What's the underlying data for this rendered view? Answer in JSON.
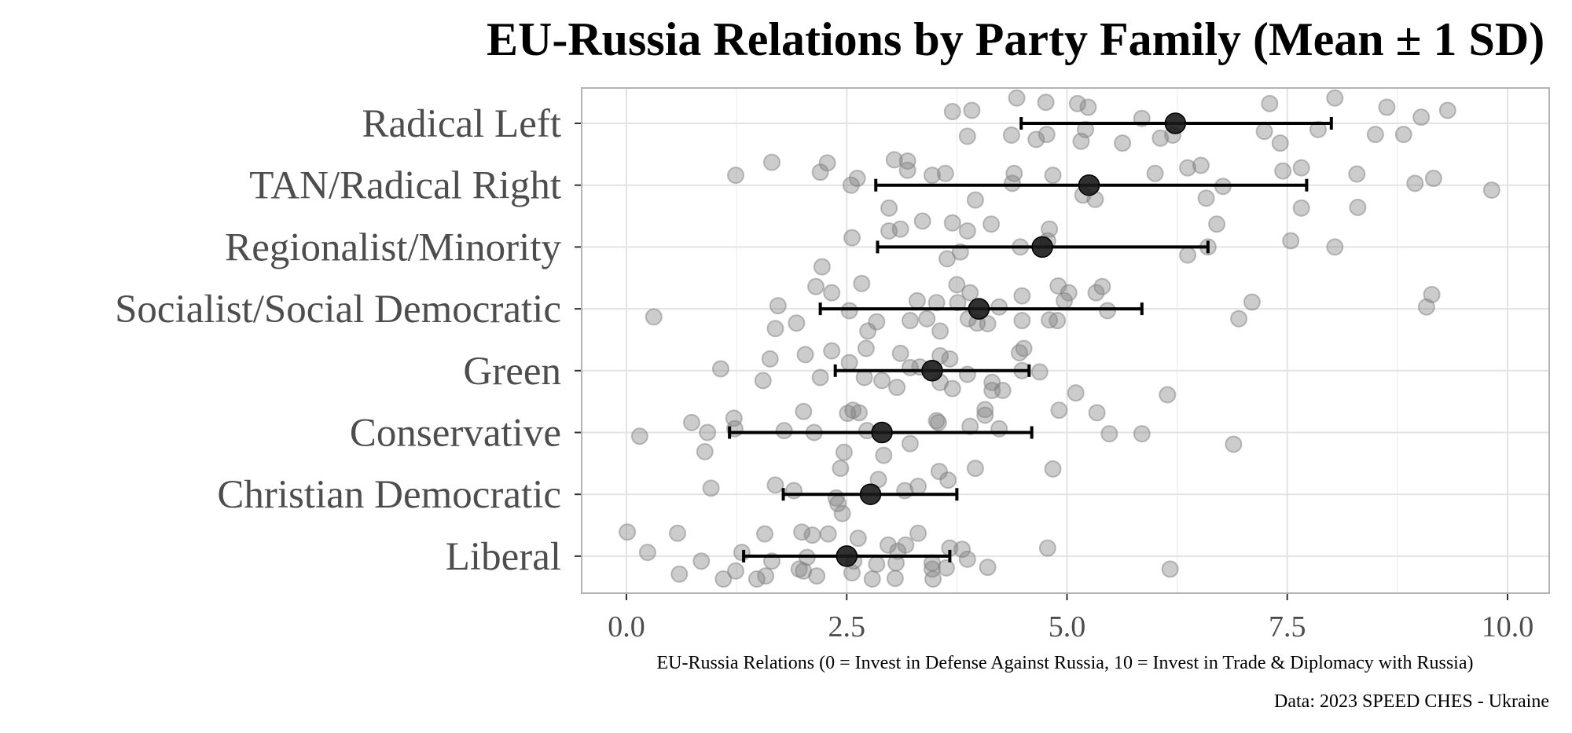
{
  "chart_data": {
    "type": "scatter",
    "title": "EU-Russia Relations by Party Family (Mean ± 1 SD)",
    "xlabel": "EU-Russia Relations (0 = Invest in Defense Against Russia, 10 = Invest in Trade & Diplomacy with Russia)",
    "ylabel": "",
    "caption": "Data: 2023 SPEED CHES - Ukraine",
    "xlim": [
      -0.5,
      10.5
    ],
    "xticks": [
      0,
      2.5,
      5,
      7.5,
      10
    ],
    "xtick_labels": [
      "0.0",
      "2.5",
      "5.0",
      "7.5",
      "10.0"
    ],
    "grid": true,
    "categories": [
      "Radical Left",
      "TAN/Radical Right",
      "Regionalist/Minority",
      "Socialist/Social Democratic",
      "Green",
      "Conservative",
      "Christian Democratic",
      "Liberal"
    ],
    "summary": [
      {
        "category": "Radical Left",
        "mean": 6.23,
        "lo": 4.48,
        "hi": 8.0
      },
      {
        "category": "TAN/Radical Right",
        "mean": 5.25,
        "lo": 2.83,
        "hi": 7.72
      },
      {
        "category": "Regionalist/Minority",
        "mean": 4.72,
        "lo": 2.85,
        "hi": 6.6
      },
      {
        "category": "Socialist/Social Democratic",
        "mean": 4.0,
        "lo": 2.2,
        "hi": 5.85
      },
      {
        "category": "Green",
        "mean": 3.47,
        "lo": 2.37,
        "hi": 4.57
      },
      {
        "category": "Conservative",
        "mean": 2.9,
        "lo": 1.17,
        "hi": 4.6
      },
      {
        "category": "Christian Democratic",
        "mean": 2.77,
        "lo": 1.78,
        "hi": 3.75
      },
      {
        "category": "Liberal",
        "mean": 2.5,
        "lo": 1.33,
        "hi": 3.67
      }
    ],
    "points": {
      "Radical Left": [
        [
          4.43,
          -0.41
        ],
        [
          4.76,
          -0.34
        ],
        [
          5.12,
          -0.32
        ],
        [
          5.24,
          -0.26
        ],
        [
          3.7,
          -0.19
        ],
        [
          3.92,
          -0.21
        ],
        [
          7.3,
          -0.32
        ],
        [
          8.04,
          -0.41
        ],
        [
          8.63,
          -0.26
        ],
        [
          9.02,
          -0.1
        ],
        [
          9.32,
          -0.21
        ],
        [
          3.87,
          0.21
        ],
        [
          4.37,
          0.19
        ],
        [
          4.65,
          0.26
        ],
        [
          4.77,
          0.18
        ],
        [
          5.21,
          0.1
        ],
        [
          5.16,
          0.29
        ],
        [
          5.63,
          0.32
        ],
        [
          5.85,
          -0.08
        ],
        [
          6.06,
          0.24
        ],
        [
          6.2,
          0.19
        ],
        [
          7.24,
          0.13
        ],
        [
          7.42,
          0.32
        ],
        [
          7.85,
          0.1
        ],
        [
          8.5,
          0.18
        ],
        [
          8.82,
          0.18
        ]
      ],
      "TAN/Radical Right": [
        [
          1.24,
          -0.16
        ],
        [
          1.65,
          -0.37
        ],
        [
          2.28,
          -0.36
        ],
        [
          2.2,
          -0.21
        ],
        [
          2.55,
          0
        ],
        [
          2.62,
          -0.11
        ],
        [
          3.04,
          -0.41
        ],
        [
          3.19,
          -0.39
        ],
        [
          3.19,
          -0.24
        ],
        [
          3.47,
          -0.16
        ],
        [
          3.62,
          -0.19
        ],
        [
          4.4,
          -0.19
        ],
        [
          4.38,
          -0.03
        ],
        [
          4.84,
          -0.16
        ],
        [
          6.37,
          -0.28
        ],
        [
          6.52,
          -0.32
        ],
        [
          6.0,
          -0.19
        ],
        [
          6.77,
          0.02
        ],
        [
          6.58,
          0.21
        ],
        [
          7.45,
          -0.23
        ],
        [
          7.66,
          -0.28
        ],
        [
          8.29,
          -0.18
        ],
        [
          8.95,
          -0.03
        ],
        [
          9.16,
          -0.11
        ],
        [
          9.82,
          0.08
        ],
        [
          5.18,
          0.16
        ],
        [
          5.32,
          0.23
        ],
        [
          3.96,
          0.24
        ],
        [
          2.98,
          0.37
        ],
        [
          7.66,
          0.37
        ],
        [
          8.3,
          0.36
        ]
      ],
      "Regionalist/Minority": [
        [
          3.36,
          -0.42
        ],
        [
          3.11,
          -0.29
        ],
        [
          2.98,
          -0.26
        ],
        [
          3.7,
          -0.39
        ],
        [
          4.14,
          -0.37
        ],
        [
          4.8,
          -0.29
        ],
        [
          6.7,
          -0.37
        ],
        [
          2.56,
          -0.15
        ],
        [
          3.87,
          -0.26
        ],
        [
          4.78,
          -0.1
        ],
        [
          7.54,
          -0.1
        ],
        [
          8.04,
          0
        ],
        [
          6.6,
          0
        ],
        [
          6.37,
          0.13
        ],
        [
          3.64,
          0.19
        ],
        [
          3.79,
          0.08
        ],
        [
          4.47,
          0
        ],
        [
          2.22,
          0.32
        ]
      ],
      "Socialist/Social Democratic": [
        [
          2.15,
          -0.36
        ],
        [
          2.33,
          -0.26
        ],
        [
          2.67,
          -0.41
        ],
        [
          3.75,
          -0.39
        ],
        [
          3.9,
          -0.26
        ],
        [
          4.49,
          -0.21
        ],
        [
          4.9,
          -0.37
        ],
        [
          5.02,
          -0.26
        ],
        [
          5.33,
          -0.26
        ],
        [
          5.4,
          -0.36
        ],
        [
          3.3,
          -0.13
        ],
        [
          3.52,
          -0.1
        ],
        [
          3.76,
          -0.1
        ],
        [
          4.23,
          -0.03
        ],
        [
          4.97,
          -0.13
        ],
        [
          5.46,
          0.03
        ],
        [
          7.1,
          -0.11
        ],
        [
          9.14,
          -0.23
        ],
        [
          9.08,
          -0.03
        ],
        [
          1.72,
          -0.05
        ],
        [
          0.31,
          0.13
        ],
        [
          2.53,
          0.03
        ],
        [
          2.84,
          0.21
        ],
        [
          3.22,
          0.19
        ],
        [
          3.41,
          0.16
        ],
        [
          3.88,
          0.16
        ],
        [
          4.1,
          0.24
        ],
        [
          4.49,
          0.19
        ],
        [
          4.8,
          0.18
        ],
        [
          4.89,
          0.19
        ],
        [
          6.95,
          0.16
        ],
        [
          1.69,
          0.32
        ],
        [
          1.93,
          0.23
        ],
        [
          2.74,
          0.36
        ],
        [
          3.56,
          0.36
        ],
        [
          3.98,
          0.23
        ]
      ],
      "Green": [
        [
          2.03,
          -0.26
        ],
        [
          2.33,
          -0.32
        ],
        [
          2.72,
          -0.36
        ],
        [
          3.11,
          -0.28
        ],
        [
          3.56,
          -0.24
        ],
        [
          4.46,
          -0.29
        ],
        [
          4.51,
          -0.36
        ],
        [
          1.63,
          -0.19
        ],
        [
          2.53,
          -0.13
        ],
        [
          3.22,
          -0.05
        ],
        [
          3.33,
          -0.06
        ],
        [
          3.67,
          -0.19
        ],
        [
          4.49,
          0
        ],
        [
          4.69,
          0.02
        ],
        [
          1.07,
          -0.03
        ],
        [
          1.55,
          0.16
        ],
        [
          2.2,
          0.11
        ],
        [
          2.7,
          0.11
        ],
        [
          2.9,
          0.16
        ],
        [
          3.56,
          0.19
        ],
        [
          3.87,
          0.06
        ],
        [
          4.15,
          0.19
        ],
        [
          4.15,
          0.32
        ],
        [
          4.27,
          0.32
        ],
        [
          3.7,
          0.29
        ],
        [
          3.07,
          0.27
        ],
        [
          5.1,
          0.36
        ],
        [
          6.14,
          0.39
        ]
      ],
      "Conservative": [
        [
          2.01,
          -0.34
        ],
        [
          2.57,
          -0.36
        ],
        [
          2.51,
          -0.31
        ],
        [
          2.64,
          -0.32
        ],
        [
          3.52,
          -0.19
        ],
        [
          3.54,
          -0.16
        ],
        [
          4.07,
          -0.28
        ],
        [
          4.07,
          -0.37
        ],
        [
          4.91,
          -0.36
        ],
        [
          5.34,
          -0.32
        ],
        [
          0.74,
          -0.16
        ],
        [
          1.22,
          -0.23
        ],
        [
          1.23,
          -0.06
        ],
        [
          0.92,
          0
        ],
        [
          0.15,
          0.06
        ],
        [
          1.79,
          -0.03
        ],
        [
          2.13,
          0
        ],
        [
          2.73,
          -0.03
        ],
        [
          3.22,
          0.18
        ],
        [
          3.9,
          -0.1
        ],
        [
          4.23,
          -0.06
        ],
        [
          5.48,
          0.02
        ],
        [
          5.85,
          0.02
        ],
        [
          6.89,
          0.19
        ],
        [
          0.89,
          0.31
        ],
        [
          2.47,
          0.32
        ],
        [
          2.92,
          0.37
        ]
      ],
      "Christian Democratic": [
        [
          2.43,
          -0.42
        ],
        [
          3.96,
          -0.42
        ],
        [
          4.84,
          -0.41
        ],
        [
          3.55,
          -0.37
        ],
        [
          3.65,
          -0.23
        ],
        [
          2.86,
          -0.24
        ],
        [
          1.69,
          -0.15
        ],
        [
          1.9,
          -0.06
        ],
        [
          3.31,
          -0.13
        ],
        [
          3.16,
          -0.06
        ],
        [
          0.96,
          -0.1
        ],
        [
          2.38,
          0.06
        ],
        [
          2.4,
          0.15
        ],
        [
          2.45,
          0.31
        ]
      ],
      "Liberal": [
        [
          0.01,
          -0.39
        ],
        [
          0.58,
          -0.37
        ],
        [
          1.57,
          -0.36
        ],
        [
          1.99,
          -0.39
        ],
        [
          2.11,
          -0.34
        ],
        [
          2.29,
          -0.36
        ],
        [
          2.63,
          -0.29
        ],
        [
          3.31,
          -0.37
        ],
        [
          4.78,
          -0.13
        ],
        [
          0.24,
          -0.06
        ],
        [
          0.85,
          0.08
        ],
        [
          1.31,
          -0.06
        ],
        [
          1.65,
          0.08
        ],
        [
          2.05,
          0.02
        ],
        [
          2.97,
          -0.18
        ],
        [
          3.17,
          -0.18
        ],
        [
          3.08,
          -0.08
        ],
        [
          3.67,
          -0.13
        ],
        [
          3.81,
          -0.11
        ],
        [
          3.87,
          0.05
        ],
        [
          2.58,
          0.08
        ],
        [
          2.84,
          0.13
        ],
        [
          3.06,
          0.11
        ],
        [
          3.47,
          0.11
        ],
        [
          3.63,
          0.19
        ],
        [
          4.1,
          0.18
        ],
        [
          6.17,
          0.21
        ],
        [
          0.6,
          0.29
        ],
        [
          1.1,
          0.37
        ],
        [
          1.24,
          0.24
        ],
        [
          1.48,
          0.37
        ],
        [
          1.58,
          0.32
        ],
        [
          1.96,
          0.21
        ],
        [
          2.01,
          0.24
        ],
        [
          2.16,
          0.32
        ],
        [
          2.56,
          0.27
        ],
        [
          2.79,
          0.37
        ],
        [
          3.05,
          0.36
        ],
        [
          3.48,
          0.37
        ],
        [
          3.47,
          0.21
        ]
      ]
    },
    "colors": {
      "point": "#808080",
      "mean": "#1a1a1a",
      "bar": "#000000",
      "grid": "#e3e3e3",
      "border": "#b3b3b3",
      "label": "#4d4d4d"
    }
  }
}
